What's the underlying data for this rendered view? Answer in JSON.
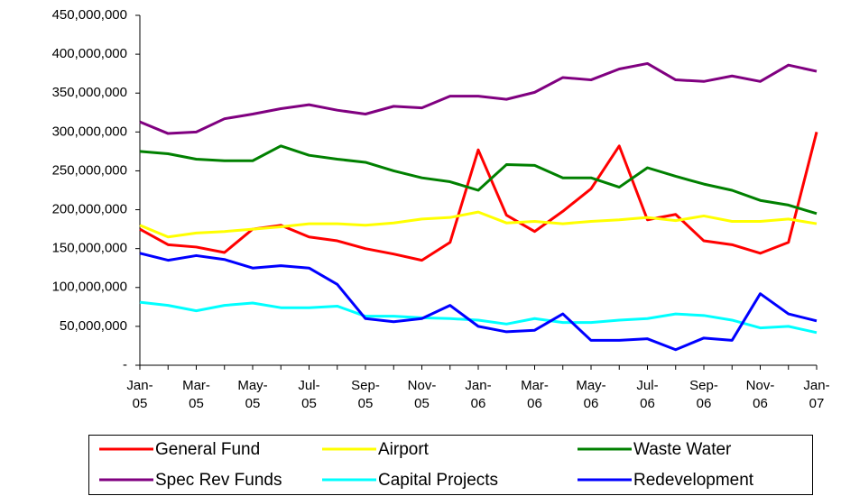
{
  "chart_data": {
    "type": "line",
    "categories": [
      "Jan-05",
      null,
      "Mar-05",
      null,
      "May-05",
      null,
      "Jul-05",
      null,
      "Sep-05",
      null,
      "Nov-05",
      null,
      "Jan-06",
      null,
      "Mar-06",
      null,
      "May-06",
      null,
      "Jul-06",
      null,
      "Sep-06",
      null,
      "Nov-06",
      null,
      "Jan-07"
    ],
    "ylim": [
      0,
      450000000
    ],
    "yticks": [
      {
        "value": 0,
        "label": "-"
      },
      {
        "value": 50000000,
        "label": "50,000,000"
      },
      {
        "value": 100000000,
        "label": "100,000,000"
      },
      {
        "value": 150000000,
        "label": "150,000,000"
      },
      {
        "value": 200000000,
        "label": "200,000,000"
      },
      {
        "value": 250000000,
        "label": "250,000,000"
      },
      {
        "value": 300000000,
        "label": "300,000,000"
      },
      {
        "value": 350000000,
        "label": "350,000,000"
      },
      {
        "value": 400000000,
        "label": "400,000,000"
      },
      {
        "value": 450000000,
        "label": "450,000,000"
      }
    ],
    "grid": false,
    "legend": "bottom",
    "series": [
      {
        "name": "General Fund",
        "color": "#ff0000",
        "values": [
          175000000,
          155000000,
          152000000,
          145000000,
          175000000,
          180000000,
          165000000,
          160000000,
          150000000,
          143000000,
          135000000,
          158000000,
          277000000,
          193000000,
          172000000,
          198000000,
          227000000,
          282000000,
          187000000,
          194000000,
          160000000,
          155000000,
          144000000,
          158000000,
          300000000
        ]
      },
      {
        "name": "Airport",
        "color": "#ffff00",
        "values": [
          180000000,
          165000000,
          170000000,
          172000000,
          175000000,
          178000000,
          182000000,
          182000000,
          180000000,
          183000000,
          188000000,
          190000000,
          197000000,
          183000000,
          185000000,
          182000000,
          185000000,
          187000000,
          190000000,
          186000000,
          192000000,
          185000000,
          185000000,
          188000000,
          182000000
        ]
      },
      {
        "name": "Waste Water",
        "color": "#008000",
        "values": [
          275000000,
          272000000,
          265000000,
          263000000,
          263000000,
          282000000,
          270000000,
          265000000,
          261000000,
          250000000,
          241000000,
          236000000,
          225000000,
          258000000,
          257000000,
          241000000,
          241000000,
          229000000,
          254000000,
          243000000,
          233000000,
          225000000,
          212000000,
          206000000,
          195000000
        ]
      },
      {
        "name": "Spec Rev Funds",
        "color": "#800080",
        "values": [
          313000000,
          298000000,
          300000000,
          317000000,
          323000000,
          330000000,
          335000000,
          328000000,
          323000000,
          333000000,
          331000000,
          346000000,
          346000000,
          342000000,
          351000000,
          370000000,
          367000000,
          381000000,
          388000000,
          367000000,
          365000000,
          372000000,
          365000000,
          386000000,
          378000000
        ]
      },
      {
        "name": "Capital Projects",
        "color": "#00ffff",
        "values": [
          81000000,
          77000000,
          70000000,
          77000000,
          80000000,
          74000000,
          74000000,
          76000000,
          63000000,
          63000000,
          61000000,
          60000000,
          58000000,
          53000000,
          60000000,
          55000000,
          55000000,
          58000000,
          60000000,
          66000000,
          64000000,
          58000000,
          48000000,
          50000000,
          42000000
        ]
      },
      {
        "name": "Redevelopment",
        "color": "#0000ff",
        "values": [
          144000000,
          135000000,
          141000000,
          136000000,
          125000000,
          128000000,
          125000000,
          104000000,
          60000000,
          56000000,
          60000000,
          77000000,
          50000000,
          43000000,
          45000000,
          66000000,
          32000000,
          32000000,
          34000000,
          20000000,
          35000000,
          32000000,
          92000000,
          66000000,
          57000000
        ]
      }
    ]
  }
}
